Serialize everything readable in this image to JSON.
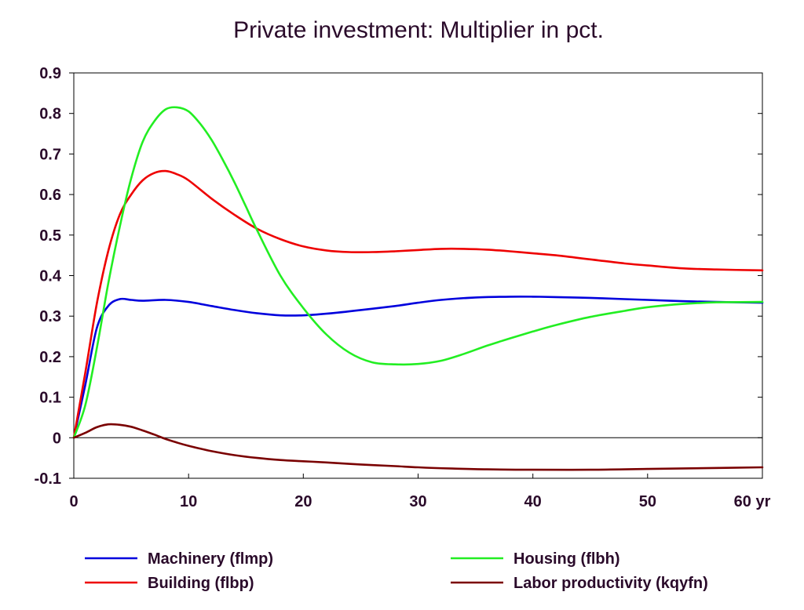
{
  "chart_data": {
    "type": "line",
    "title": "Private investment: Multiplier in pct.",
    "x_unit_label": "yr",
    "xlim": [
      0,
      60
    ],
    "ylim": [
      -0.1,
      0.9
    ],
    "x_ticks": [
      0,
      10,
      20,
      30,
      40,
      50,
      60
    ],
    "y_ticks": [
      -0.1,
      0,
      0.1,
      0.2,
      0.3,
      0.4,
      0.5,
      0.6,
      0.7,
      0.8,
      0.9
    ],
    "x_tick_labels": [
      "0",
      "10",
      "20",
      "30",
      "40",
      "50",
      "60 yr"
    ],
    "y_tick_labels": [
      "-0.1",
      "0",
      "0.1",
      "0.2",
      "0.3",
      "0.4",
      "0.5",
      "0.6",
      "0.7",
      "0.8",
      "0.9"
    ],
    "zero_line": true,
    "legend_position": "bottom",
    "series": [
      {
        "name": "Machinery (flmp)",
        "color": "#0000dd",
        "x": [
          0,
          1,
          2,
          3,
          4,
          5,
          6,
          8,
          10,
          12,
          14,
          16,
          18,
          20,
          22,
          25,
          28,
          30,
          32,
          35,
          38,
          40,
          42,
          45,
          48,
          50,
          53,
          56,
          60
        ],
        "y": [
          0,
          0.13,
          0.27,
          0.325,
          0.342,
          0.34,
          0.338,
          0.34,
          0.335,
          0.325,
          0.315,
          0.307,
          0.302,
          0.302,
          0.306,
          0.315,
          0.325,
          0.333,
          0.34,
          0.346,
          0.348,
          0.348,
          0.347,
          0.345,
          0.342,
          0.34,
          0.337,
          0.335,
          0.333
        ]
      },
      {
        "name": "Building (flbp)",
        "color": "#ee0000",
        "x": [
          0,
          1,
          2,
          3,
          4,
          5,
          6,
          7,
          8,
          9,
          10,
          12,
          14,
          16,
          18,
          20,
          22,
          24,
          26,
          28,
          30,
          32,
          34,
          36,
          38,
          40,
          42,
          45,
          48,
          50,
          53,
          56,
          60
        ],
        "y": [
          0,
          0.16,
          0.33,
          0.46,
          0.55,
          0.6,
          0.635,
          0.653,
          0.658,
          0.65,
          0.635,
          0.59,
          0.55,
          0.515,
          0.49,
          0.472,
          0.462,
          0.458,
          0.458,
          0.46,
          0.463,
          0.466,
          0.466,
          0.464,
          0.46,
          0.455,
          0.45,
          0.44,
          0.43,
          0.425,
          0.418,
          0.415,
          0.413
        ]
      },
      {
        "name": "Housing (flbh)",
        "color": "#22ee22",
        "x": [
          0,
          1,
          2,
          3,
          4,
          5,
          6,
          7,
          8,
          9,
          10,
          11,
          12,
          13,
          14,
          15,
          16,
          18,
          20,
          22,
          24,
          26,
          28,
          30,
          32,
          34,
          36,
          38,
          40,
          42,
          45,
          48,
          50,
          53,
          56,
          60
        ],
        "y": [
          0,
          0.08,
          0.22,
          0.38,
          0.52,
          0.64,
          0.73,
          0.78,
          0.81,
          0.815,
          0.805,
          0.775,
          0.735,
          0.685,
          0.63,
          0.57,
          0.51,
          0.4,
          0.32,
          0.255,
          0.21,
          0.186,
          0.181,
          0.182,
          0.19,
          0.207,
          0.227,
          0.245,
          0.262,
          0.278,
          0.298,
          0.313,
          0.322,
          0.33,
          0.334,
          0.335
        ]
      },
      {
        "name": "Labor productivity (kqyfn)",
        "color": "#7a0000",
        "x": [
          0,
          1,
          2,
          3,
          4,
          5,
          6,
          7,
          8,
          9,
          10,
          12,
          14,
          16,
          18,
          20,
          22,
          25,
          28,
          30,
          33,
          36,
          40,
          45,
          50,
          55,
          60
        ],
        "y": [
          0,
          0.012,
          0.026,
          0.033,
          0.032,
          0.027,
          0.018,
          0.008,
          -0.003,
          -0.012,
          -0.02,
          -0.033,
          -0.043,
          -0.05,
          -0.055,
          -0.058,
          -0.061,
          -0.066,
          -0.07,
          -0.073,
          -0.076,
          -0.078,
          -0.079,
          -0.079,
          -0.077,
          -0.075,
          -0.073
        ]
      }
    ]
  }
}
